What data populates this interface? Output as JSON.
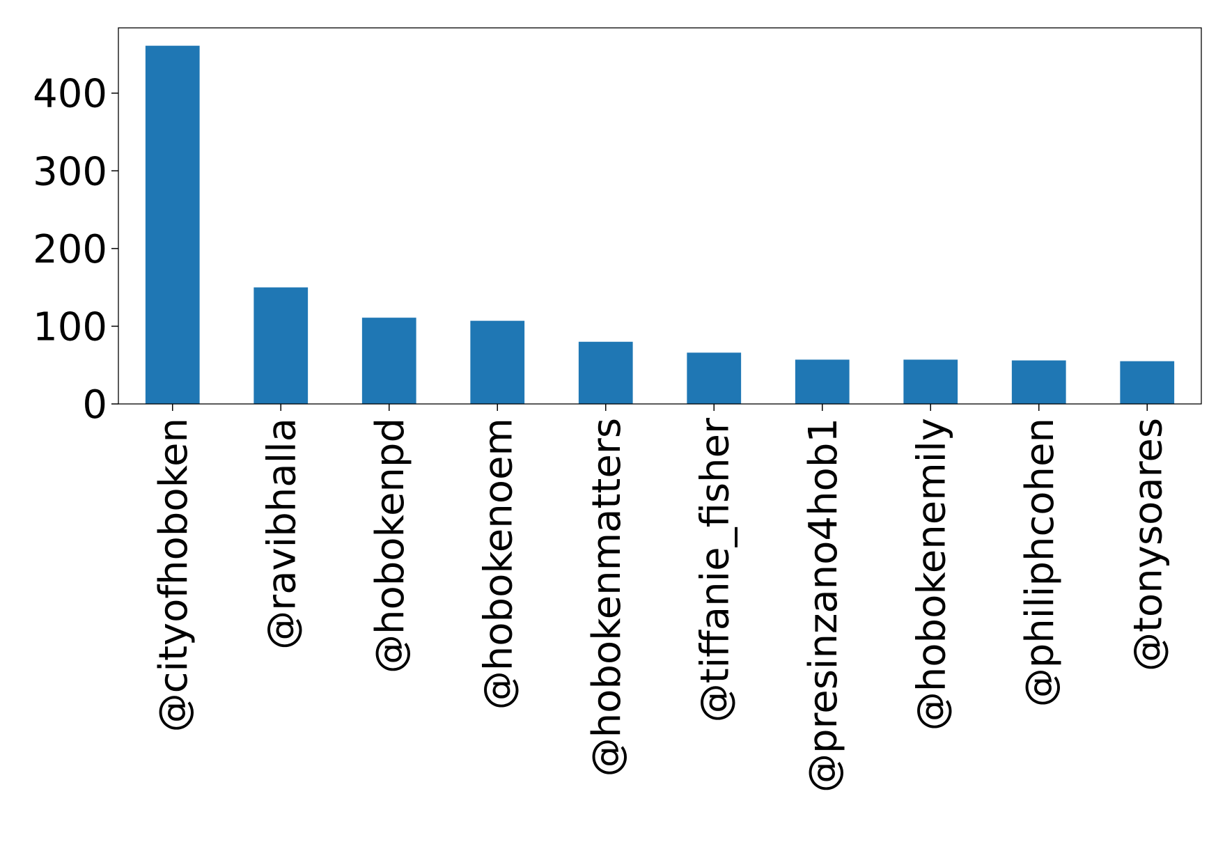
{
  "chart_data": {
    "type": "bar",
    "title": "",
    "xlabel": "",
    "ylabel": "",
    "categories": [
      "@cityofhoboken",
      "@ravibhalla",
      "@hobokenpd",
      "@hobokenoem",
      "@hobokenmatters",
      "@tiffanie_fisher",
      "@presinzano4hob1",
      "@hobokenemily",
      "@philiphcohen",
      "@tonysoares"
    ],
    "values": [
      461,
      150,
      111,
      107,
      80,
      66,
      57,
      57,
      56,
      55
    ],
    "ylim": [
      0,
      484
    ],
    "yticks": [
      0,
      100,
      200,
      300,
      400
    ],
    "grid": false,
    "legend": "none",
    "bar_color": "#1f77b4",
    "axis_color": "#000000"
  }
}
